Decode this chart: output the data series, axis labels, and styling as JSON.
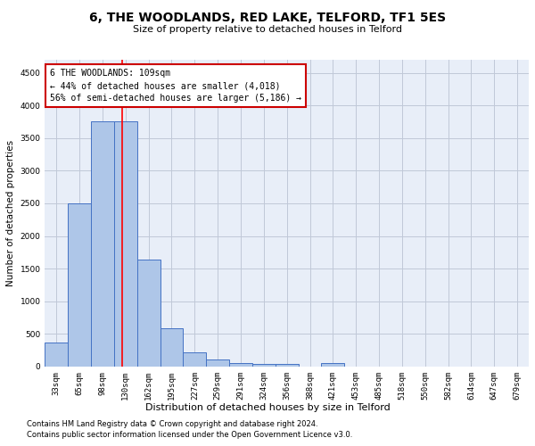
{
  "title": "6, THE WOODLANDS, RED LAKE, TELFORD, TF1 5ES",
  "subtitle": "Size of property relative to detached houses in Telford",
  "xlabel": "Distribution of detached houses by size in Telford",
  "ylabel": "Number of detached properties",
  "footnote1": "Contains HM Land Registry data © Crown copyright and database right 2024.",
  "footnote2": "Contains public sector information licensed under the Open Government Licence v3.0.",
  "annotation_line1": "6 THE WOODLANDS: 109sqm",
  "annotation_line2": "← 44% of detached houses are smaller (4,018)",
  "annotation_line3": "56% of semi-detached houses are larger (5,186) →",
  "bar_labels": [
    "33sqm",
    "65sqm",
    "98sqm",
    "130sqm",
    "162sqm",
    "195sqm",
    "227sqm",
    "259sqm",
    "291sqm",
    "324sqm",
    "356sqm",
    "388sqm",
    "421sqm",
    "453sqm",
    "485sqm",
    "518sqm",
    "550sqm",
    "582sqm",
    "614sqm",
    "647sqm",
    "679sqm"
  ],
  "bar_values": [
    370,
    2500,
    3750,
    3750,
    1640,
    580,
    220,
    105,
    60,
    45,
    35,
    0,
    60,
    0,
    0,
    0,
    0,
    0,
    0,
    0,
    0
  ],
  "bar_color": "#aec6e8",
  "bar_edge_color": "#4472c4",
  "ylim": [
    0,
    4700
  ],
  "yticks": [
    0,
    500,
    1000,
    1500,
    2000,
    2500,
    3000,
    3500,
    4000,
    4500
  ],
  "annotation_box_color": "#cc0000",
  "background_color": "#e8eef8",
  "grid_color": "#c0c8d8",
  "title_fontsize": 10,
  "subtitle_fontsize": 8,
  "xlabel_fontsize": 8,
  "ylabel_fontsize": 7.5,
  "footnote_fontsize": 6,
  "tick_fontsize": 6.5,
  "annotation_fontsize": 7
}
